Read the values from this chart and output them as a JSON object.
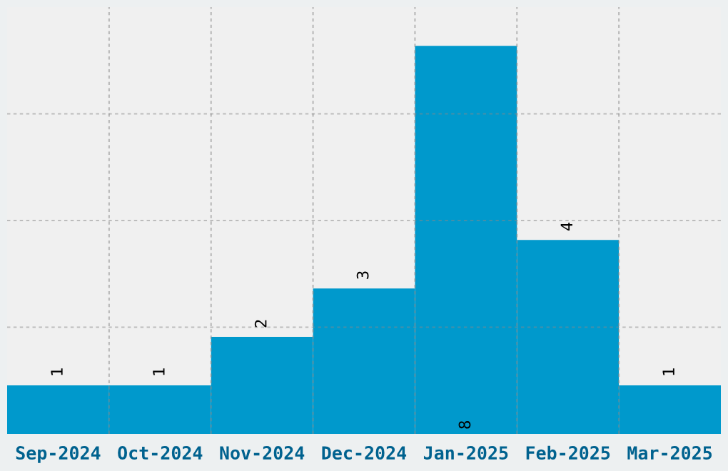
{
  "chart_data": {
    "type": "bar",
    "categories": [
      "Sep-2024",
      "Oct-2024",
      "Nov-2024",
      "Dec-2024",
      "Jan-2025",
      "Feb-2025",
      "Mar-2025"
    ],
    "values": [
      1,
      1,
      2,
      3,
      8,
      4,
      1
    ],
    "color": "#0099cc",
    "ylim": [
      0,
      8.8
    ],
    "yticks": [
      {
        "value": 2.2,
        "label": null
      },
      {
        "value": 4.4,
        "label": null
      },
      {
        "value": 6.6,
        "label": null
      }
    ],
    "tick_labels": "x",
    "grid": true,
    "data_labels": true
  }
}
